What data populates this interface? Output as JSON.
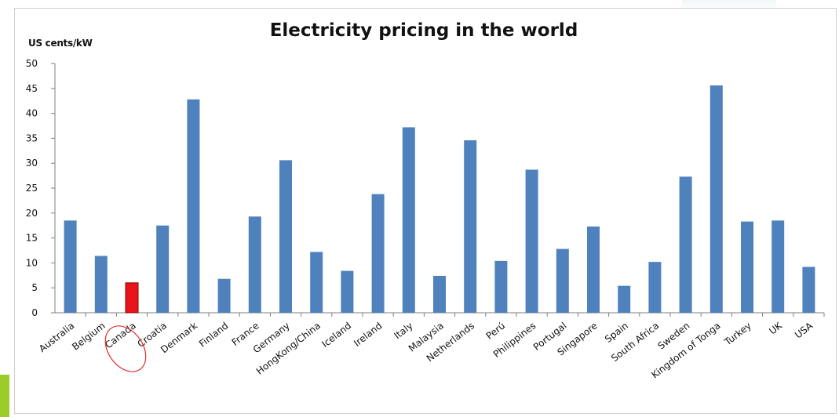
{
  "chart_data": {
    "type": "bar",
    "title": "Electricity pricing in the world",
    "ylabel": "US cents/kW",
    "xlabel": "",
    "ylim": [
      0,
      50
    ],
    "yticks": [
      "0",
      "5",
      "10",
      "15",
      "20",
      "25",
      "30",
      "35",
      "40",
      "45",
      "50"
    ],
    "grid": false,
    "categories": [
      "Australia",
      "Belgium",
      "Canada",
      "Croatia",
      "Denmark",
      "Finland",
      "France",
      "Germany",
      "HongKong/China",
      "Iceland",
      "Ireland",
      "Italy",
      "Malaysia",
      "Netherlands",
      "Perú",
      "Philippines",
      "Portugal",
      "Singapore",
      "Spain",
      "South Africa",
      "Sweden",
      "Kingdom of Tonga",
      "Turkey",
      "UK",
      "USA"
    ],
    "values": [
      18.5,
      11.4,
      6.0,
      17.5,
      42.8,
      6.8,
      19.3,
      30.6,
      12.2,
      8.4,
      23.8,
      37.2,
      7.4,
      34.6,
      10.4,
      28.7,
      12.8,
      17.3,
      5.4,
      10.2,
      27.3,
      45.6,
      18.3,
      18.5,
      9.2
    ],
    "bar_color": "#4f81bd",
    "highlight": {
      "category": "Canada",
      "bar_color": "#e8141c",
      "circle_color": "#e03030"
    }
  }
}
